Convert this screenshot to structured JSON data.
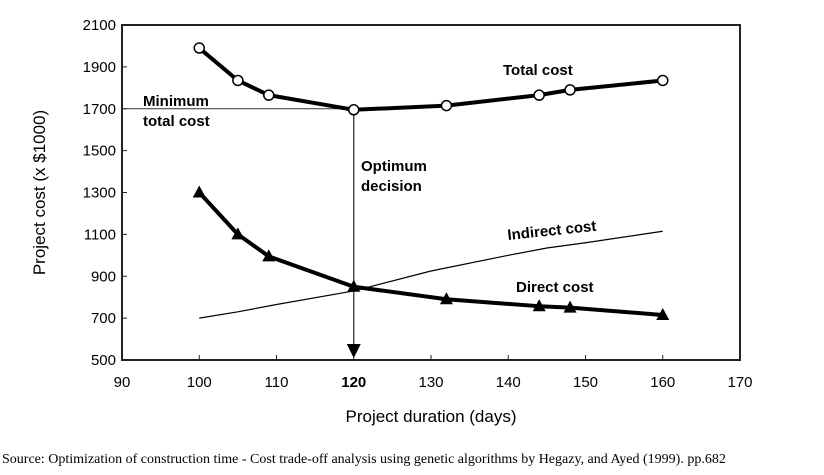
{
  "chart_data": {
    "type": "line",
    "xlabel": "Project duration (days)",
    "ylabel": "Project cost  (x $1000)",
    "xlim": [
      90,
      170
    ],
    "ylim": [
      500,
      2100
    ],
    "xticks": [
      90,
      100,
      110,
      120,
      130,
      140,
      150,
      160,
      170
    ],
    "yticks": [
      500,
      700,
      900,
      1100,
      1300,
      1500,
      1700,
      1900,
      2100
    ],
    "highlight_xtick": 120,
    "grid": false,
    "series": [
      {
        "name": "Total cost",
        "marker": "circle",
        "x": [
          100,
          105,
          109,
          120,
          132,
          144,
          148,
          160
        ],
        "y": [
          1990,
          1835,
          1765,
          1695,
          1715,
          1765,
          1790,
          1835
        ]
      },
      {
        "name": "Direct cost",
        "marker": "triangle",
        "x": [
          100,
          105,
          109,
          120,
          132,
          144,
          148,
          160
        ],
        "y": [
          1300,
          1100,
          995,
          850,
          790,
          757,
          750,
          715
        ]
      },
      {
        "name": "Indirect cost",
        "marker": "none",
        "x": [
          100,
          105,
          110,
          120,
          130,
          140,
          145,
          150,
          160
        ],
        "y": [
          700,
          730,
          765,
          830,
          925,
          1000,
          1035,
          1060,
          1115
        ]
      }
    ],
    "annotations": {
      "min_label_1": "Minimum",
      "min_label_2": "total cost",
      "opt_label_1": "Optimum",
      "opt_label_2": "decision",
      "min_value": 1700,
      "opt_x": 120
    }
  },
  "source": "Source: Optimization of construction time - Cost trade-off analysis using genetic algorithms by Hegazy, and Ayed (1999). pp.682"
}
